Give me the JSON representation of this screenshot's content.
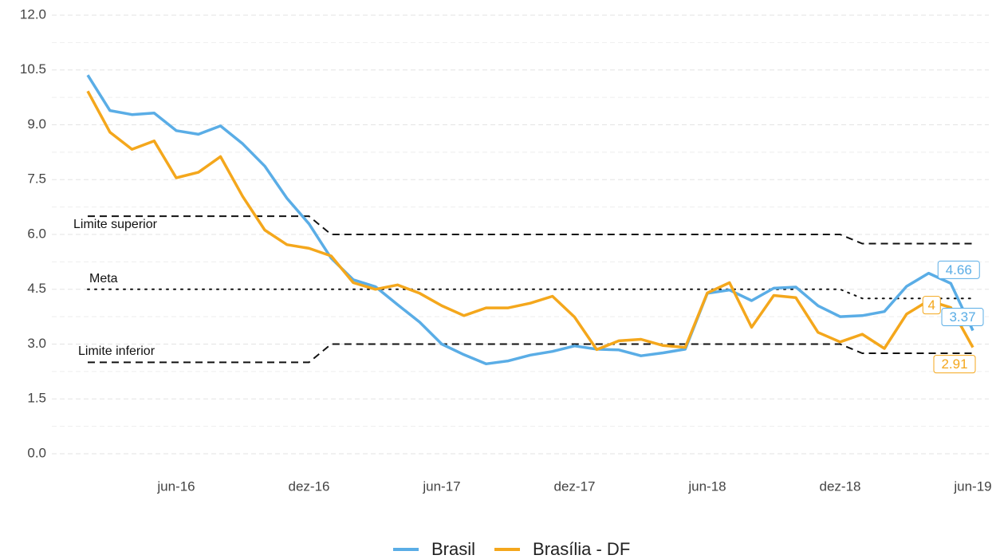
{
  "chart_data": {
    "type": "line",
    "x": [
      "2016-02",
      "2016-03",
      "2016-04",
      "2016-05",
      "2016-06",
      "2016-07",
      "2016-08",
      "2016-09",
      "2016-10",
      "2016-11",
      "2016-12",
      "2017-01",
      "2017-02",
      "2017-03",
      "2017-04",
      "2017-05",
      "2017-06",
      "2017-07",
      "2017-08",
      "2017-09",
      "2017-10",
      "2017-11",
      "2017-12",
      "2018-01",
      "2018-02",
      "2018-03",
      "2018-04",
      "2018-05",
      "2018-06",
      "2018-07",
      "2018-08",
      "2018-09",
      "2018-10",
      "2018-11",
      "2018-12",
      "2019-01",
      "2019-02",
      "2019-03",
      "2019-04",
      "2019-05",
      "2019-06"
    ],
    "series": [
      {
        "name": "Brasil",
        "color": "#5aade6",
        "values": [
          10.36,
          9.39,
          9.28,
          9.32,
          8.84,
          8.74,
          8.97,
          8.48,
          7.87,
          6.99,
          6.29,
          5.35,
          4.76,
          4.57,
          4.08,
          3.6,
          3.0,
          2.71,
          2.46,
          2.54,
          2.7,
          2.8,
          2.95,
          2.86,
          2.84,
          2.68,
          2.76,
          2.86,
          4.39,
          4.48,
          4.19,
          4.53,
          4.56,
          4.05,
          3.75,
          3.78,
          3.89,
          4.58,
          4.94,
          4.66,
          3.37
        ],
        "value_labels": [
          null,
          null,
          null,
          null,
          null,
          null,
          null,
          null,
          null,
          null,
          null,
          null,
          null,
          null,
          null,
          null,
          null,
          null,
          null,
          null,
          null,
          null,
          null,
          null,
          null,
          null,
          null,
          null,
          null,
          null,
          null,
          null,
          null,
          null,
          null,
          null,
          null,
          null,
          null,
          "4.66",
          "3.37"
        ]
      },
      {
        "name": "Brasília - DF",
        "color": "#f4a71c",
        "values": [
          9.92,
          8.8,
          8.33,
          8.56,
          7.55,
          7.7,
          8.13,
          7.04,
          6.12,
          5.72,
          5.62,
          5.41,
          4.68,
          4.5,
          4.62,
          4.39,
          4.05,
          3.78,
          3.99,
          3.99,
          4.12,
          4.31,
          3.74,
          2.85,
          3.09,
          3.13,
          2.96,
          2.91,
          4.4,
          4.68,
          3.46,
          4.33,
          4.27,
          3.32,
          3.06,
          3.27,
          2.88,
          3.82,
          4.19,
          4.0,
          2.91
        ],
        "value_labels": [
          null,
          null,
          null,
          null,
          null,
          null,
          null,
          null,
          null,
          null,
          null,
          null,
          null,
          null,
          null,
          null,
          null,
          null,
          null,
          null,
          null,
          null,
          null,
          null,
          null,
          null,
          null,
          null,
          null,
          null,
          null,
          null,
          null,
          null,
          null,
          null,
          null,
          null,
          null,
          "4",
          "2.91"
        ]
      }
    ],
    "reference_lines": [
      {
        "name": "Limite superior",
        "dash": "dashed",
        "values": [
          6.5,
          6.5,
          6.5,
          6.5,
          6.5,
          6.5,
          6.5,
          6.5,
          6.5,
          6.5,
          6.5,
          6,
          6,
          6,
          6,
          6,
          6,
          6,
          6,
          6,
          6,
          6,
          6,
          6,
          6,
          6,
          6,
          6,
          6,
          6,
          6,
          6,
          6,
          6,
          6,
          5.75,
          5.75,
          5.75,
          5.75,
          5.75,
          5.75
        ]
      },
      {
        "name": "Meta",
        "dash": "dotted",
        "values": [
          4.5,
          4.5,
          4.5,
          4.5,
          4.5,
          4.5,
          4.5,
          4.5,
          4.5,
          4.5,
          4.5,
          4.5,
          4.5,
          4.5,
          4.5,
          4.5,
          4.5,
          4.5,
          4.5,
          4.5,
          4.5,
          4.5,
          4.5,
          4.5,
          4.5,
          4.5,
          4.5,
          4.5,
          4.5,
          4.5,
          4.5,
          4.5,
          4.5,
          4.5,
          4.5,
          4.25,
          4.25,
          4.25,
          4.25,
          4.25,
          4.25
        ]
      },
      {
        "name": "Limite inferior",
        "dash": "dashed",
        "values": [
          2.5,
          2.5,
          2.5,
          2.5,
          2.5,
          2.5,
          2.5,
          2.5,
          2.5,
          2.5,
          2.5,
          3,
          3,
          3,
          3,
          3,
          3,
          3,
          3,
          3,
          3,
          3,
          3,
          3,
          3,
          3,
          3,
          3,
          3,
          3,
          3,
          3,
          3,
          3,
          3,
          2.75,
          2.75,
          2.75,
          2.75,
          2.75,
          2.75
        ]
      }
    ],
    "ylim": [
      0,
      12
    ],
    "yticks": [
      {
        "value": 0,
        "label": "0.0"
      },
      {
        "value": 1.5,
        "label": "1.5"
      },
      {
        "value": 3,
        "label": "3.0"
      },
      {
        "value": 4.5,
        "label": "4.5"
      },
      {
        "value": 6,
        "label": "6.0"
      },
      {
        "value": 7.5,
        "label": "7.5"
      },
      {
        "value": 9,
        "label": "9.0"
      },
      {
        "value": 10.5,
        "label": "10.5"
      },
      {
        "value": 12,
        "label": "12.0"
      }
    ],
    "xticks": [
      {
        "value": "2016-06",
        "label": "jun-16"
      },
      {
        "value": "2016-12",
        "label": "dez-16"
      },
      {
        "value": "2017-06",
        "label": "jun-17"
      },
      {
        "value": "2017-12",
        "label": "dez-17"
      },
      {
        "value": "2018-06",
        "label": "jun-18"
      },
      {
        "value": "2018-12",
        "label": "dez-18"
      },
      {
        "value": "2019-06",
        "label": "jun-19"
      }
    ],
    "grid": true,
    "legend": "bottom"
  }
}
